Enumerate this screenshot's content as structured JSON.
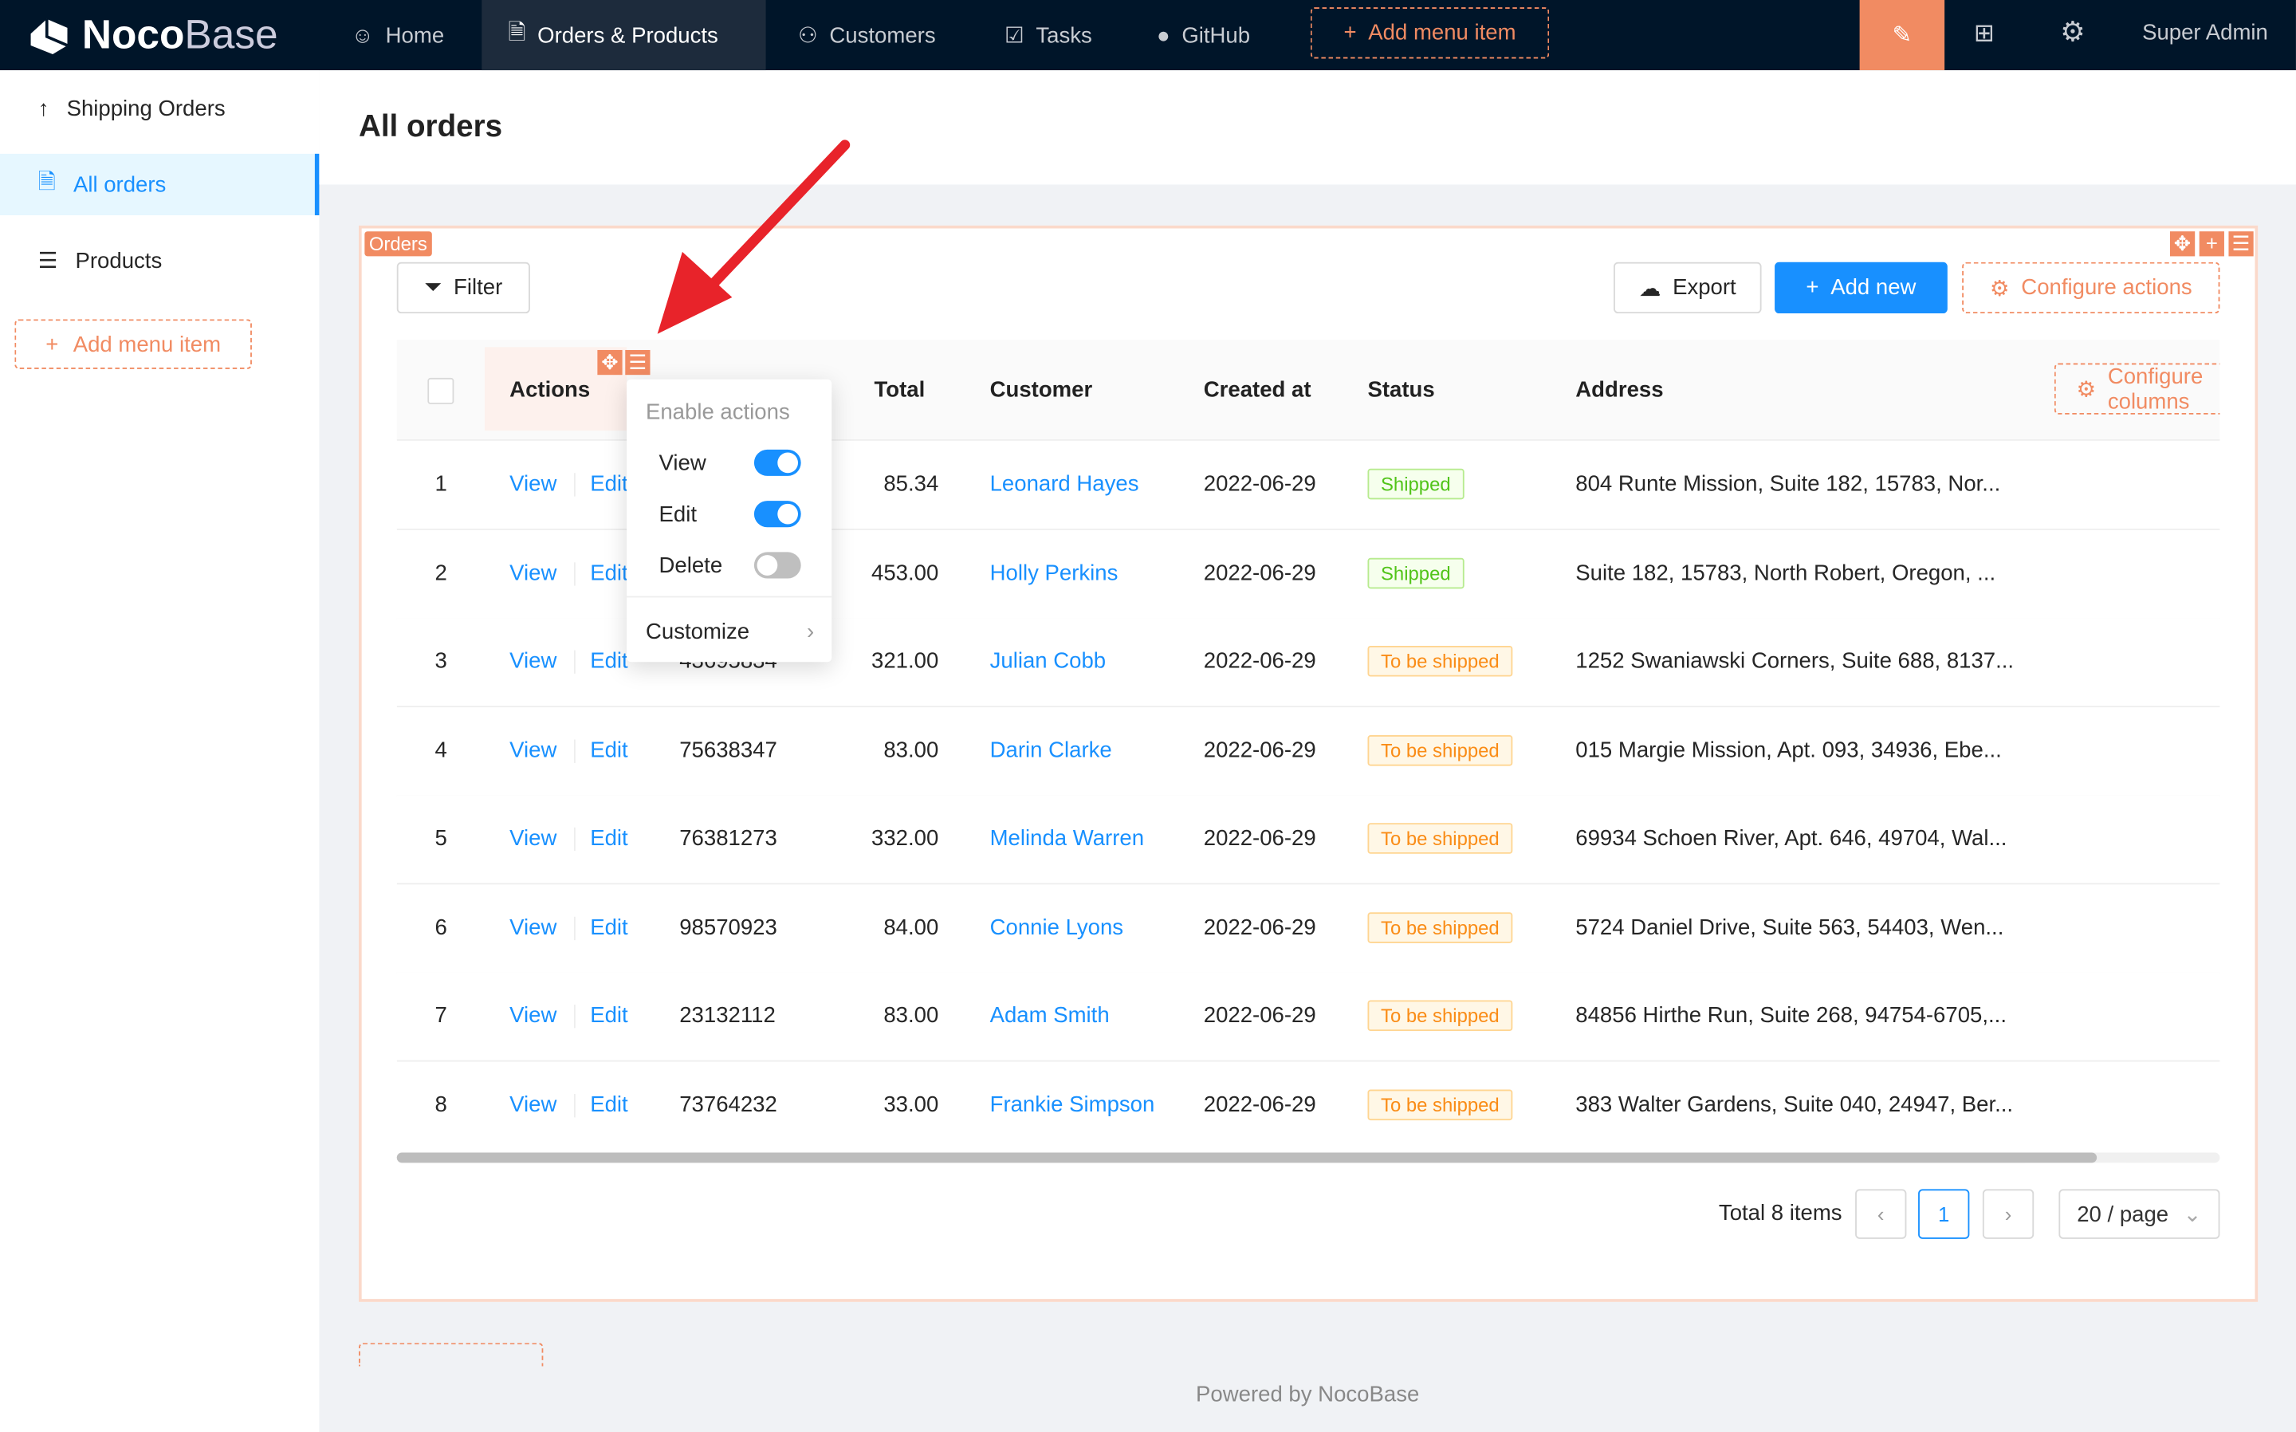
{
  "header": {
    "brand_bold": "Noco",
    "brand_light": "Base",
    "nav": [
      {
        "label": "Home",
        "icon": "smile-icon"
      },
      {
        "label": "Orders & Products",
        "icon": "file-check-icon",
        "active": true
      },
      {
        "label": "Customers",
        "icon": "user-icon"
      },
      {
        "label": "Tasks",
        "icon": "checkbox-icon"
      },
      {
        "label": "GitHub",
        "icon": "github-icon"
      }
    ],
    "add_menu_item": "Add menu item",
    "user": "Super Admin",
    "accent": "#f18b62"
  },
  "sidebar": {
    "items": [
      {
        "label": "Shipping Orders",
        "icon": "arrow-up-icon"
      },
      {
        "label": "All orders",
        "icon": "file-check-icon",
        "selected": true
      },
      {
        "label": "Products",
        "icon": "list-icon"
      }
    ],
    "add_menu_item": "Add menu item"
  },
  "page": {
    "title": "All orders"
  },
  "block": {
    "tag": "Orders",
    "filter": "Filter",
    "export": "Export",
    "add_new": "Add new",
    "configure_actions": "Configure actions",
    "configure_columns": "Configure columns"
  },
  "table": {
    "columns": [
      "Actions",
      "Total",
      "Customer",
      "Created at",
      "Status",
      "Address"
    ],
    "rows": [
      {
        "n": "1",
        "view": "View",
        "edit": "Edit",
        "order": "",
        "total": "85.34",
        "customer": "Leonard Hayes",
        "created": "2022-06-29",
        "status": "Shipped",
        "address": "804 Runte Mission, Suite 182, 15783, Nor..."
      },
      {
        "n": "2",
        "view": "View",
        "edit": "Edit",
        "order": "",
        "total": "453.00",
        "customer": "Holly Perkins",
        "created": "2022-06-29",
        "status": "Shipped",
        "address": "Suite 182, 15783, North Robert, Oregon, ..."
      },
      {
        "n": "3",
        "view": "View",
        "edit": "Edit",
        "order": "43695834",
        "total": "321.00",
        "customer": "Julian Cobb",
        "created": "2022-06-29",
        "status": "To be shipped",
        "address": "1252 Swaniawski Corners, Suite 688, 8137..."
      },
      {
        "n": "4",
        "view": "View",
        "edit": "Edit",
        "order": "75638347",
        "total": "83.00",
        "customer": "Darin Clarke",
        "created": "2022-06-29",
        "status": "To be shipped",
        "address": "015 Margie Mission, Apt. 093, 34936, Ebe..."
      },
      {
        "n": "5",
        "view": "View",
        "edit": "Edit",
        "order": "76381273",
        "total": "332.00",
        "customer": "Melinda Warren",
        "created": "2022-06-29",
        "status": "To be shipped",
        "address": "69934 Schoen River, Apt. 646, 49704, Wal..."
      },
      {
        "n": "6",
        "view": "View",
        "edit": "Edit",
        "order": "98570923",
        "total": "84.00",
        "customer": "Connie Lyons",
        "created": "2022-06-29",
        "status": "To be shipped",
        "address": "5724 Daniel Drive, Suite 563, 54403, Wen..."
      },
      {
        "n": "7",
        "view": "View",
        "edit": "Edit",
        "order": "23132112",
        "total": "83.00",
        "customer": "Adam Smith",
        "created": "2022-06-29",
        "status": "To be shipped",
        "address": "84856 Hirthe Run, Suite 268, 94754-6705,..."
      },
      {
        "n": "8",
        "view": "View",
        "edit": "Edit",
        "order": "73764232",
        "total": "33.00",
        "customer": "Frankie Simpson",
        "created": "2022-06-29",
        "status": "To be shipped",
        "address": "383 Walter Gardens, Suite 040, 24947, Ber..."
      }
    ]
  },
  "pagination": {
    "total": "Total 8 items",
    "current": "1",
    "page_size": "20 / page"
  },
  "popup": {
    "title": "Enable actions",
    "items": [
      {
        "label": "View",
        "enabled": true
      },
      {
        "label": "Edit",
        "enabled": true
      },
      {
        "label": "Delete",
        "enabled": false
      }
    ],
    "customize": "Customize"
  },
  "footer": "Powered by NocoBase"
}
